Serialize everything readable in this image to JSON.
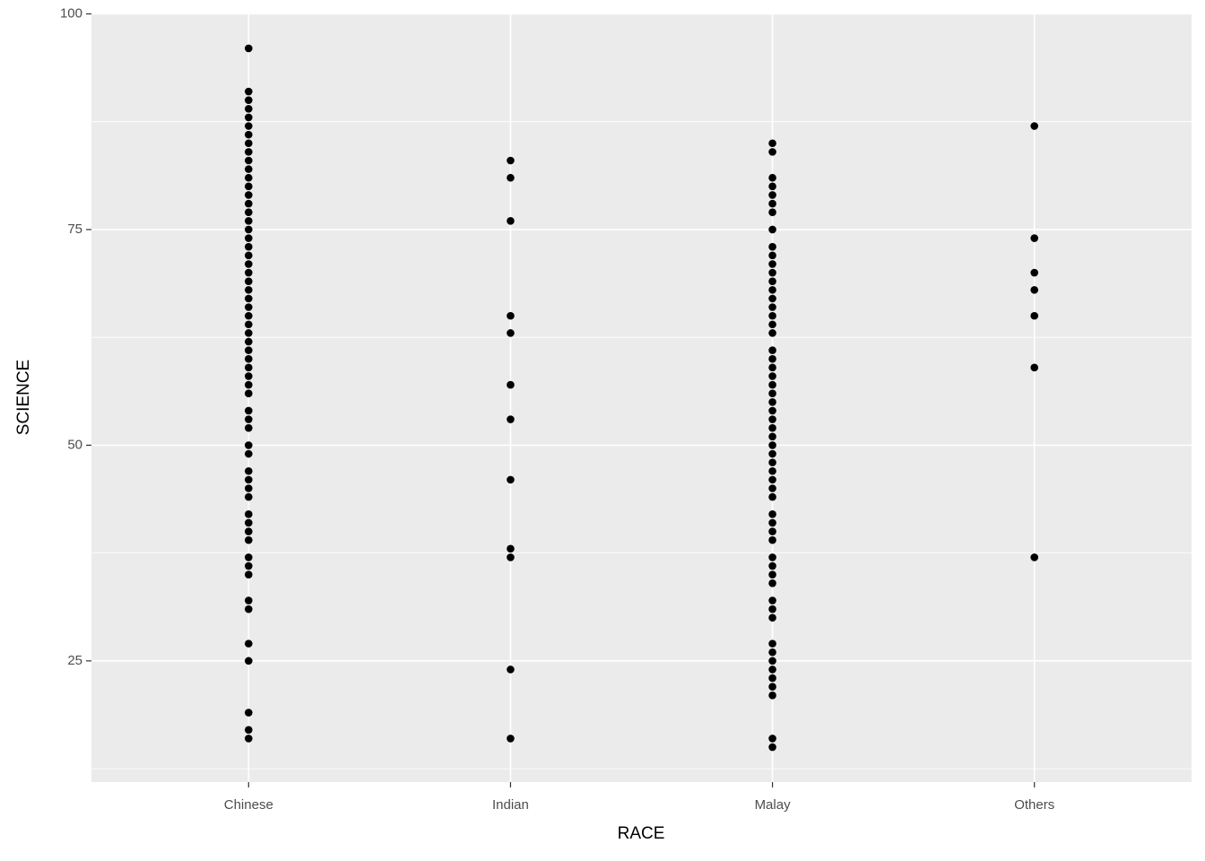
{
  "chart_data": {
    "type": "scatter",
    "x_label": "RACE",
    "y_label": "SCIENCE",
    "categories": [
      "Chinese",
      "Indian",
      "Malay",
      "Others"
    ],
    "values": [
      [
        96,
        91,
        90,
        89,
        88,
        87,
        86,
        85,
        84,
        83,
        82,
        81,
        80,
        79,
        78,
        77,
        76,
        75,
        74,
        73,
        72,
        71,
        70,
        69,
        68,
        67,
        66,
        65,
        64,
        63,
        62,
        61,
        60,
        59,
        58,
        57,
        56,
        54,
        53,
        52,
        50,
        49,
        47,
        46,
        45,
        44,
        42,
        41,
        40,
        39,
        37,
        36,
        35,
        32,
        31,
        27,
        25,
        19,
        17,
        16
      ],
      [
        83,
        81,
        76,
        65,
        63,
        57,
        53,
        46,
        38,
        37,
        24,
        16
      ],
      [
        85,
        84,
        81,
        80,
        79,
        78,
        77,
        75,
        73,
        72,
        71,
        70,
        69,
        68,
        67,
        66,
        65,
        64,
        63,
        61,
        60,
        59,
        58,
        57,
        56,
        55,
        54,
        53,
        52,
        51,
        50,
        49,
        48,
        47,
        46,
        45,
        44,
        42,
        41,
        40,
        39,
        37,
        36,
        35,
        34,
        32,
        31,
        30,
        27,
        26,
        25,
        24,
        23,
        22,
        21,
        16,
        15
      ],
      [
        87,
        74,
        70,
        68,
        65,
        59,
        37
      ]
    ],
    "color": "#000000",
    "ylim": [
      10.95,
      100.05
    ],
    "yticks": [
      25,
      50,
      75,
      100
    ],
    "y_minor_ticks": [
      12.5,
      37.5,
      62.5,
      87.5
    ],
    "grid": true
  }
}
